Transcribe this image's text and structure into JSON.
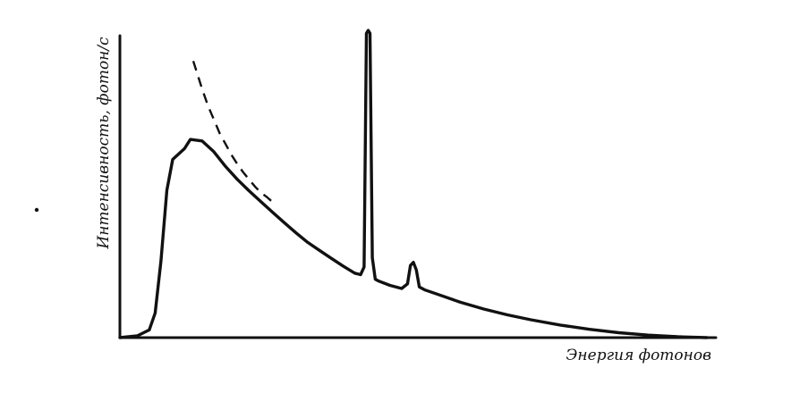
{
  "chart_data": {
    "type": "line",
    "title": "",
    "xlabel": "Энергия фотонов",
    "ylabel": "Интенсивность, фотон/с",
    "xlim": [
      0,
      100
    ],
    "ylim": [
      0,
      100
    ],
    "grid": false,
    "legend": "none",
    "tick_labels": {
      "x": [],
      "y": []
    },
    "series": [
      {
        "style": "solid",
        "x": [
          0,
          3,
          5,
          6,
          7,
          8,
          9,
          11,
          12,
          14,
          16,
          18,
          20,
          22,
          24,
          26,
          28,
          30,
          32,
          34,
          36,
          38,
          40,
          41,
          41.6,
          42,
          42.3,
          42.6,
          43,
          43.5,
          44,
          46,
          48,
          49,
          49.5,
          50,
          50.5,
          51,
          52,
          54,
          58,
          62,
          66,
          70,
          75,
          80,
          85,
          90,
          95,
          100
        ],
        "y": [
          0,
          0.6,
          2.5,
          8,
          25,
          48,
          58,
          61.5,
          64.5,
          64,
          60.5,
          55.7,
          51.5,
          47.8,
          44.3,
          40.8,
          37.4,
          34.1,
          31,
          28.4,
          25.8,
          23.3,
          21,
          20.5,
          23,
          99,
          100,
          99,
          26,
          19,
          18.5,
          17,
          16,
          17.5,
          23.5,
          24.5,
          22,
          16.5,
          15.5,
          14.2,
          11.5,
          9.3,
          7.4,
          5.8,
          4.1,
          2.7,
          1.6,
          0.8,
          0.3,
          0
        ]
      },
      {
        "style": "dashed",
        "x": [
          12.5,
          14,
          15,
          16,
          17,
          18,
          19,
          20,
          21,
          22,
          23,
          24,
          25,
          26.5
        ],
        "y": [
          90,
          81,
          75.5,
          71,
          66.5,
          63,
          59.5,
          56.5,
          53.8,
          51.5,
          49.2,
          47.2,
          45.8,
          43.3
        ]
      }
    ]
  }
}
